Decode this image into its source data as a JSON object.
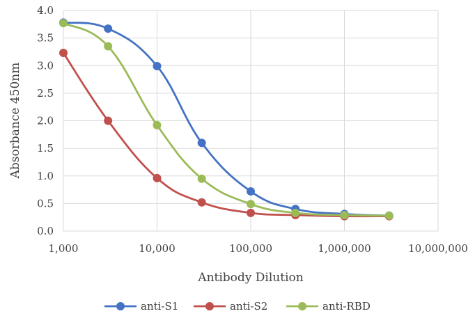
{
  "chart_data": {
    "type": "line",
    "xscale": "log",
    "xlabel": "Antibody Dilution",
    "ylabel": "Absorbance 450nm",
    "xlim": [
      1000,
      10000000
    ],
    "ylim": [
      0,
      4.0
    ],
    "grid": true,
    "legend": "bottom",
    "x_tick_labels": [
      "1,000",
      "10,000",
      "100,000",
      "1,000,000",
      "10,000,000"
    ],
    "y_tick_labels": [
      "0.0",
      "0.5",
      "1.0",
      "1.5",
      "2.0",
      "2.5",
      "3.0",
      "3.5",
      "4.0"
    ],
    "x": [
      1000,
      3000,
      10000,
      30000,
      100000,
      300000,
      1000000,
      3000000
    ],
    "series": [
      {
        "name": "anti-S1",
        "color": "#4472C4",
        "values": [
          3.78,
          3.67,
          2.99,
          1.6,
          0.72,
          0.4,
          0.31,
          0.28
        ]
      },
      {
        "name": "anti-S2",
        "color": "#C0504D",
        "values": [
          3.23,
          2.0,
          0.96,
          0.52,
          0.33,
          0.29,
          0.27,
          0.27
        ]
      },
      {
        "name": "anti-RBD",
        "color": "#9BBB59",
        "values": [
          3.77,
          3.35,
          1.92,
          0.95,
          0.49,
          0.33,
          0.29,
          0.28
        ]
      }
    ]
  }
}
